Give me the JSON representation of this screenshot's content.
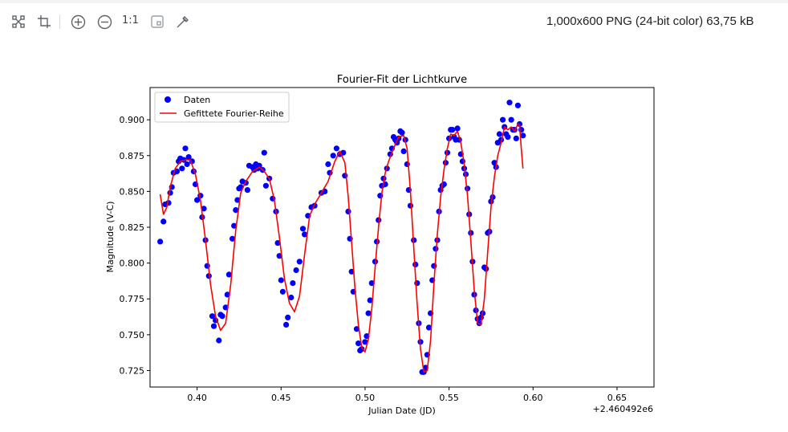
{
  "toolbar": {
    "icons": [
      "fit-to-window-icon",
      "crop-icon",
      "zoom-in-icon",
      "zoom-out-icon",
      "actual-size-icon",
      "frame-icon",
      "eyedropper-icon"
    ],
    "actual_size_label": "1:1",
    "file_info": "1,000x600 PNG (24-bit color) 63,75 kB"
  },
  "chart_data": {
    "type": "scatter",
    "title": "Fourier-Fit der Lichtkurve",
    "xlabel": "Julian Date (JD)",
    "ylabel": "Magnitude (V-C)",
    "x_offset_label": "+2.460492e6",
    "xlim": [
      0.372,
      0.672
    ],
    "ylim": [
      0.7135,
      0.9225
    ],
    "xticks": [
      0.4,
      0.45,
      0.5,
      0.55,
      0.6,
      0.65
    ],
    "xtick_labels": [
      "0.40",
      "0.45",
      "0.50",
      "0.55",
      "0.60",
      "0.65"
    ],
    "yticks": [
      0.725,
      0.75,
      0.775,
      0.8,
      0.825,
      0.85,
      0.875,
      0.9
    ],
    "ytick_labels": [
      "0.725",
      "0.750",
      "0.775",
      "0.800",
      "0.825",
      "0.850",
      "0.875",
      "0.900"
    ],
    "grid": false,
    "legend": "top-left",
    "series": [
      {
        "name": "Daten",
        "kind": "scatter",
        "color": "#0000ff",
        "points": [
          [
            0.378,
            0.815
          ],
          [
            0.38,
            0.829
          ],
          [
            0.381,
            0.841
          ],
          [
            0.383,
            0.842
          ],
          [
            0.384,
            0.849
          ],
          [
            0.385,
            0.853
          ],
          [
            0.386,
            0.863
          ],
          [
            0.388,
            0.864
          ],
          [
            0.389,
            0.871
          ],
          [
            0.39,
            0.873
          ],
          [
            0.391,
            0.866
          ],
          [
            0.392,
            0.872
          ],
          [
            0.393,
            0.88
          ],
          [
            0.394,
            0.869
          ],
          [
            0.395,
            0.874
          ],
          [
            0.397,
            0.871
          ],
          [
            0.398,
            0.864
          ],
          [
            0.399,
            0.855
          ],
          [
            0.4,
            0.844
          ],
          [
            0.402,
            0.847
          ],
          [
            0.403,
            0.832
          ],
          [
            0.404,
            0.838
          ],
          [
            0.405,
            0.816
          ],
          [
            0.406,
            0.798
          ],
          [
            0.407,
            0.791
          ],
          [
            0.409,
            0.763
          ],
          [
            0.41,
            0.756
          ],
          [
            0.411,
            0.76
          ],
          [
            0.413,
            0.746
          ],
          [
            0.414,
            0.764
          ],
          [
            0.415,
            0.763
          ],
          [
            0.417,
            0.769
          ],
          [
            0.418,
            0.778
          ],
          [
            0.419,
            0.792
          ],
          [
            0.421,
            0.817
          ],
          [
            0.422,
            0.826
          ],
          [
            0.423,
            0.837
          ],
          [
            0.424,
            0.844
          ],
          [
            0.425,
            0.852
          ],
          [
            0.426,
            0.853
          ],
          [
            0.427,
            0.857
          ],
          [
            0.429,
            0.856
          ],
          [
            0.43,
            0.851
          ],
          [
            0.431,
            0.868
          ],
          [
            0.433,
            0.867
          ],
          [
            0.434,
            0.865
          ],
          [
            0.435,
            0.869
          ],
          [
            0.436,
            0.866
          ],
          [
            0.437,
            0.868
          ],
          [
            0.439,
            0.865
          ],
          [
            0.44,
            0.877
          ],
          [
            0.441,
            0.854
          ],
          [
            0.443,
            0.859
          ],
          [
            0.445,
            0.845
          ],
          [
            0.447,
            0.836
          ],
          [
            0.448,
            0.814
          ],
          [
            0.449,
            0.805
          ],
          [
            0.45,
            0.788
          ],
          [
            0.451,
            0.78
          ],
          [
            0.453,
            0.757
          ],
          [
            0.454,
            0.762
          ],
          [
            0.456,
            0.776
          ],
          [
            0.457,
            0.786
          ],
          [
            0.459,
            0.795
          ],
          [
            0.461,
            0.801
          ],
          [
            0.463,
            0.824
          ],
          [
            0.464,
            0.82
          ],
          [
            0.466,
            0.833
          ],
          [
            0.468,
            0.839
          ],
          [
            0.47,
            0.84
          ],
          [
            0.474,
            0.849
          ],
          [
            0.476,
            0.85
          ],
          [
            0.478,
            0.869
          ],
          [
            0.479,
            0.863
          ],
          [
            0.481,
            0.875
          ],
          [
            0.483,
            0.88
          ],
          [
            0.485,
            0.876
          ],
          [
            0.487,
            0.877
          ],
          [
            0.488,
            0.861
          ],
          [
            0.49,
            0.836
          ],
          [
            0.491,
            0.817
          ],
          [
            0.492,
            0.794
          ],
          [
            0.493,
            0.78
          ],
          [
            0.495,
            0.754
          ],
          [
            0.496,
            0.744
          ],
          [
            0.497,
            0.739
          ],
          [
            0.498,
            0.74
          ],
          [
            0.5,
            0.745
          ],
          [
            0.501,
            0.749
          ],
          [
            0.502,
            0.765
          ],
          [
            0.503,
            0.774
          ],
          [
            0.504,
            0.786
          ],
          [
            0.506,
            0.801
          ],
          [
            0.507,
            0.815
          ],
          [
            0.508,
            0.83
          ],
          [
            0.509,
            0.847
          ],
          [
            0.51,
            0.854
          ],
          [
            0.511,
            0.859
          ],
          [
            0.512,
            0.855
          ],
          [
            0.513,
            0.866
          ],
          [
            0.515,
            0.876
          ],
          [
            0.516,
            0.88
          ],
          [
            0.517,
            0.888
          ],
          [
            0.518,
            0.886
          ],
          [
            0.519,
            0.884
          ],
          [
            0.52,
            0.887
          ],
          [
            0.521,
            0.892
          ],
          [
            0.522,
            0.891
          ],
          [
            0.523,
            0.878
          ],
          [
            0.524,
            0.886
          ],
          [
            0.525,
            0.869
          ],
          [
            0.526,
            0.851
          ],
          [
            0.527,
            0.84
          ],
          [
            0.529,
            0.816
          ],
          [
            0.53,
            0.799
          ],
          [
            0.531,
            0.786
          ],
          [
            0.532,
            0.758
          ],
          [
            0.533,
            0.745
          ],
          [
            0.534,
            0.724
          ],
          [
            0.535,
            0.724
          ],
          [
            0.536,
            0.727
          ],
          [
            0.537,
            0.736
          ],
          [
            0.538,
            0.755
          ],
          [
            0.539,
            0.765
          ],
          [
            0.54,
            0.788
          ],
          [
            0.541,
            0.798
          ],
          [
            0.542,
            0.81
          ],
          [
            0.543,
            0.816
          ],
          [
            0.544,
            0.836
          ],
          [
            0.545,
            0.851
          ],
          [
            0.546,
            0.854
          ],
          [
            0.547,
            0.855
          ],
          [
            0.548,
            0.87
          ],
          [
            0.549,
            0.877
          ],
          [
            0.55,
            0.887
          ],
          [
            0.551,
            0.893
          ],
          [
            0.552,
            0.893
          ],
          [
            0.553,
            0.888
          ],
          [
            0.554,
            0.886
          ],
          [
            0.555,
            0.894
          ],
          [
            0.556,
            0.886
          ],
          [
            0.557,
            0.876
          ],
          [
            0.558,
            0.871
          ],
          [
            0.559,
            0.866
          ],
          [
            0.56,
            0.862
          ],
          [
            0.561,
            0.852
          ],
          [
            0.562,
            0.834
          ],
          [
            0.563,
            0.821
          ],
          [
            0.564,
            0.801
          ],
          [
            0.565,
            0.778
          ],
          [
            0.566,
            0.767
          ],
          [
            0.567,
            0.761
          ],
          [
            0.568,
            0.758
          ],
          [
            0.569,
            0.762
          ],
          [
            0.57,
            0.765
          ],
          [
            0.571,
            0.797
          ],
          [
            0.572,
            0.796
          ],
          [
            0.573,
            0.821
          ],
          [
            0.574,
            0.822
          ],
          [
            0.575,
            0.843
          ],
          [
            0.576,
            0.846
          ],
          [
            0.577,
            0.87
          ],
          [
            0.578,
            0.867
          ],
          [
            0.579,
            0.884
          ],
          [
            0.58,
            0.89
          ],
          [
            0.581,
            0.886
          ],
          [
            0.582,
            0.9
          ],
          [
            0.583,
            0.895
          ],
          [
            0.584,
            0.89
          ],
          [
            0.585,
            0.888
          ],
          [
            0.586,
            0.912
          ],
          [
            0.587,
            0.9
          ],
          [
            0.588,
            0.893
          ],
          [
            0.589,
            0.893
          ],
          [
            0.59,
            0.887
          ],
          [
            0.591,
            0.91
          ],
          [
            0.592,
            0.897
          ],
          [
            0.593,
            0.893
          ],
          [
            0.594,
            0.889
          ]
        ]
      },
      {
        "name": "Gefittete Fourier-Reihe",
        "kind": "line",
        "color": "#ff0000",
        "points": [
          [
            0.378,
            0.848
          ],
          [
            0.38,
            0.834
          ],
          [
            0.382,
            0.839
          ],
          [
            0.384,
            0.853
          ],
          [
            0.387,
            0.866
          ],
          [
            0.39,
            0.871
          ],
          [
            0.393,
            0.872
          ],
          [
            0.396,
            0.872
          ],
          [
            0.399,
            0.862
          ],
          [
            0.402,
            0.844
          ],
          [
            0.405,
            0.816
          ],
          [
            0.408,
            0.785
          ],
          [
            0.411,
            0.763
          ],
          [
            0.414,
            0.753
          ],
          [
            0.417,
            0.758
          ],
          [
            0.42,
            0.785
          ],
          [
            0.423,
            0.823
          ],
          [
            0.426,
            0.849
          ],
          [
            0.429,
            0.857
          ],
          [
            0.433,
            0.864
          ],
          [
            0.437,
            0.867
          ],
          [
            0.44,
            0.864
          ],
          [
            0.443,
            0.859
          ],
          [
            0.446,
            0.844
          ],
          [
            0.449,
            0.818
          ],
          [
            0.452,
            0.789
          ],
          [
            0.455,
            0.772
          ],
          [
            0.458,
            0.766
          ],
          [
            0.461,
            0.777
          ],
          [
            0.464,
            0.806
          ],
          [
            0.467,
            0.833
          ],
          [
            0.47,
            0.841
          ],
          [
            0.474,
            0.849
          ],
          [
            0.478,
            0.857
          ],
          [
            0.482,
            0.871
          ],
          [
            0.485,
            0.878
          ],
          [
            0.488,
            0.87
          ],
          [
            0.49,
            0.846
          ],
          [
            0.492,
            0.814
          ],
          [
            0.494,
            0.782
          ],
          [
            0.496,
            0.757
          ],
          [
            0.498,
            0.741
          ],
          [
            0.5,
            0.738
          ],
          [
            0.502,
            0.747
          ],
          [
            0.504,
            0.768
          ],
          [
            0.506,
            0.797
          ],
          [
            0.508,
            0.825
          ],
          [
            0.51,
            0.849
          ],
          [
            0.512,
            0.863
          ],
          [
            0.514,
            0.871
          ],
          [
            0.517,
            0.88
          ],
          [
            0.52,
            0.888
          ],
          [
            0.523,
            0.889
          ],
          [
            0.525,
            0.88
          ],
          [
            0.527,
            0.85
          ],
          [
            0.529,
            0.81
          ],
          [
            0.531,
            0.772
          ],
          [
            0.533,
            0.74
          ],
          [
            0.535,
            0.724
          ],
          [
            0.537,
            0.725
          ],
          [
            0.539,
            0.746
          ],
          [
            0.541,
            0.786
          ],
          [
            0.543,
            0.82
          ],
          [
            0.545,
            0.846
          ],
          [
            0.547,
            0.865
          ],
          [
            0.549,
            0.88
          ],
          [
            0.551,
            0.89
          ],
          [
            0.553,
            0.889
          ],
          [
            0.555,
            0.892
          ],
          [
            0.557,
            0.884
          ],
          [
            0.559,
            0.869
          ],
          [
            0.561,
            0.847
          ],
          [
            0.563,
            0.815
          ],
          [
            0.565,
            0.781
          ],
          [
            0.567,
            0.758
          ],
          [
            0.569,
            0.757
          ],
          [
            0.571,
            0.775
          ],
          [
            0.573,
            0.808
          ],
          [
            0.575,
            0.839
          ],
          [
            0.577,
            0.86
          ],
          [
            0.579,
            0.875
          ],
          [
            0.581,
            0.884
          ],
          [
            0.583,
            0.895
          ],
          [
            0.585,
            0.893
          ],
          [
            0.587,
            0.895
          ],
          [
            0.589,
            0.892
          ],
          [
            0.591,
            0.897
          ],
          [
            0.592,
            0.896
          ],
          [
            0.593,
            0.88
          ],
          [
            0.594,
            0.866
          ]
        ]
      }
    ]
  }
}
